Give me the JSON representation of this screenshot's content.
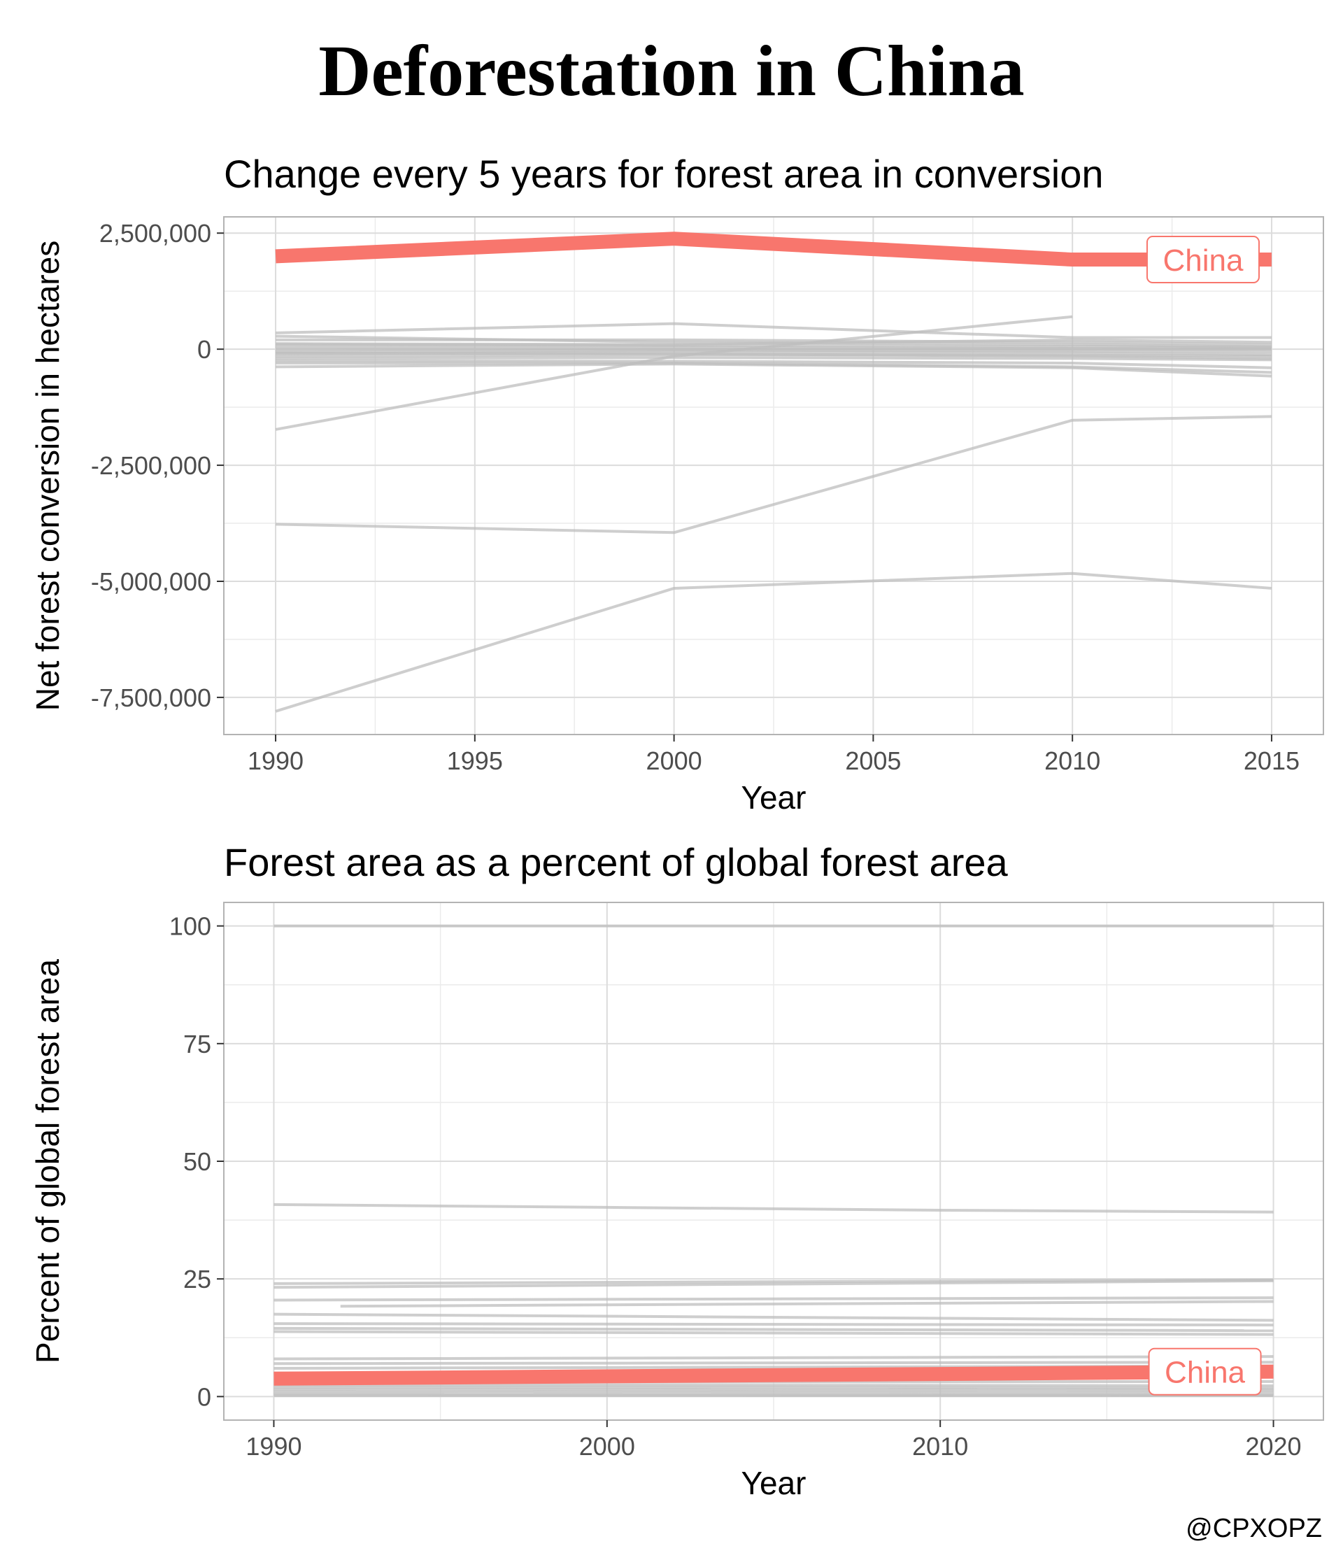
{
  "title": "Deforestation in China",
  "credit": "@CPXOPZ",
  "colors": {
    "highlight": "#F8766D",
    "other": "#BEBEBE",
    "grid": "#DCDCDC",
    "axis_text": "#4D4D4D"
  },
  "chart_data": [
    {
      "type": "line",
      "title": "Change every 5 years for forest area in conversion",
      "xlabel": "Year",
      "ylabel": "Net forest conversion in hectares",
      "xlim": [
        1988.7,
        2016.3
      ],
      "ylim": [
        -8300000,
        2850000
      ],
      "xticks": [
        1990,
        1995,
        2000,
        2005,
        2010,
        2015
      ],
      "xtick_labels": [
        "1990",
        "1995",
        "2000",
        "2005",
        "2010",
        "2015"
      ],
      "yticks": [
        -7500000,
        -5000000,
        -2500000,
        0,
        2500000
      ],
      "ytick_labels": [
        "-7,500,000",
        "-5,000,000",
        "-2,500,000",
        "0",
        "2,500,000"
      ],
      "grid": true,
      "highlight": {
        "name": "China",
        "x": [
          1990,
          2000,
          2010,
          2015
        ],
        "y": [
          2000000,
          2380000,
          1930000,
          1930000
        ]
      },
      "others": [
        {
          "x": [
            1990,
            2000,
            2010,
            2015
          ],
          "y": [
            -7800000,
            -5150000,
            -4830000,
            -5150000
          ]
        },
        {
          "x": [
            1990,
            2000,
            2010,
            2015
          ],
          "y": [
            -3770000,
            -3950000,
            -1530000,
            -1450000
          ]
        },
        {
          "x": [
            1990,
            2000,
            2010
          ],
          "y": [
            -1730000,
            -150000,
            700000
          ]
        },
        {
          "x": [
            1990,
            2000,
            2010,
            2015
          ],
          "y": [
            350000,
            550000,
            250000,
            250000
          ]
        },
        {
          "x": [
            1990,
            2000,
            2010,
            2015
          ],
          "y": [
            280000,
            150000,
            100000,
            50000
          ]
        },
        {
          "x": [
            1990,
            2000,
            2010,
            2015
          ],
          "y": [
            200000,
            200000,
            150000,
            100000
          ]
        },
        {
          "x": [
            1990,
            2000,
            2010,
            2015
          ],
          "y": [
            100000,
            80000,
            60000,
            40000
          ]
        },
        {
          "x": [
            1990,
            2000,
            2010,
            2015
          ],
          "y": [
            50000,
            40000,
            20000,
            0
          ]
        },
        {
          "x": [
            1990,
            2000,
            2010,
            2015
          ],
          "y": [
            0,
            0,
            0,
            0
          ]
        },
        {
          "x": [
            1990,
            2000,
            2010,
            2015
          ],
          "y": [
            -50000,
            -20000,
            -40000,
            -60000
          ]
        },
        {
          "x": [
            1990,
            2000,
            2010,
            2015
          ],
          "y": [
            -100000,
            -60000,
            -80000,
            -120000
          ]
        },
        {
          "x": [
            1990,
            2000,
            2010,
            2015
          ],
          "y": [
            -150000,
            -120000,
            -130000,
            -150000
          ]
        },
        {
          "x": [
            1990,
            2000,
            2010,
            2015
          ],
          "y": [
            -200000,
            -180000,
            -200000,
            -230000
          ]
        },
        {
          "x": [
            1990,
            2000,
            2010,
            2015
          ],
          "y": [
            -250000,
            -260000,
            -300000,
            -400000
          ]
        },
        {
          "x": [
            1990,
            2000,
            2010,
            2015
          ],
          "y": [
            -300000,
            -300000,
            -380000,
            -500000
          ]
        },
        {
          "x": [
            1990,
            2000,
            2010,
            2015
          ],
          "y": [
            -380000,
            -320000,
            -400000,
            -580000
          ]
        },
        {
          "x": [
            1990,
            2000,
            2010,
            2015
          ],
          "y": [
            -80000,
            -100000,
            -150000,
            -200000
          ]
        },
        {
          "x": [
            1990,
            2000,
            2010,
            2015
          ],
          "y": [
            120000,
            100000,
            200000,
            150000
          ]
        }
      ]
    },
    {
      "type": "line",
      "title": "Forest area as a percent of global forest area",
      "xlabel": "Year",
      "ylabel": "Percent of global forest area",
      "xlim": [
        1988.5,
        2021.5
      ],
      "ylim": [
        -5,
        105
      ],
      "xticks": [
        1990,
        2000,
        2010,
        2020
      ],
      "xtick_labels": [
        "1990",
        "2000",
        "2010",
        "2020"
      ],
      "yticks": [
        0,
        25,
        50,
        75,
        100
      ],
      "ytick_labels": [
        "0",
        "25",
        "50",
        "75",
        "100"
      ],
      "grid": true,
      "highlight": {
        "name": "China",
        "x": [
          1990,
          2000,
          2010,
          2020
        ],
        "y": [
          3.8,
          4.3,
          4.8,
          5.3
        ]
      },
      "others": [
        {
          "x": [
            1990,
            2020
          ],
          "y": [
            100,
            100
          ]
        },
        {
          "x": [
            1990,
            2000,
            2010,
            2020
          ],
          "y": [
            40.8,
            40.2,
            39.6,
            39.2
          ]
        },
        {
          "x": [
            1990,
            2020
          ],
          "y": [
            24.0,
            24.8
          ]
        },
        {
          "x": [
            1990,
            2020
          ],
          "y": [
            23.2,
            24.6
          ]
        },
        {
          "x": [
            1990,
            2020
          ],
          "y": [
            20.5,
            21.0
          ]
        },
        {
          "x": [
            1992,
            2020
          ],
          "y": [
            19.2,
            20.2
          ]
        },
        {
          "x": [
            1990,
            2020
          ],
          "y": [
            17.5,
            16.2
          ]
        },
        {
          "x": [
            1990,
            2020
          ],
          "y": [
            15.5,
            15.2
          ]
        },
        {
          "x": [
            1990,
            2020
          ],
          "y": [
            14.5,
            14.0
          ]
        },
        {
          "x": [
            1990,
            2020
          ],
          "y": [
            13.8,
            13.2
          ]
        },
        {
          "x": [
            1990,
            2020
          ],
          "y": [
            8.0,
            8.5
          ]
        },
        {
          "x": [
            1990,
            2020
          ],
          "y": [
            7.0,
            7.3
          ]
        },
        {
          "x": [
            1990,
            2020
          ],
          "y": [
            6.0,
            6.5
          ]
        },
        {
          "x": [
            1990,
            2020
          ],
          "y": [
            5.0,
            4.6
          ]
        },
        {
          "x": [
            1990,
            2020
          ],
          "y": [
            3.0,
            3.2
          ]
        },
        {
          "x": [
            1990,
            2020
          ],
          "y": [
            2.5,
            2.3
          ]
        },
        {
          "x": [
            1990,
            2020
          ],
          "y": [
            2.0,
            1.8
          ]
        },
        {
          "x": [
            1990,
            2020
          ],
          "y": [
            1.5,
            1.4
          ]
        },
        {
          "x": [
            1990,
            2020
          ],
          "y": [
            1.0,
            0.9
          ]
        },
        {
          "x": [
            1990,
            2020
          ],
          "y": [
            0.5,
            0.4
          ]
        },
        {
          "x": [
            1990,
            2020
          ],
          "y": [
            0.2,
            0.2
          ]
        }
      ]
    }
  ]
}
